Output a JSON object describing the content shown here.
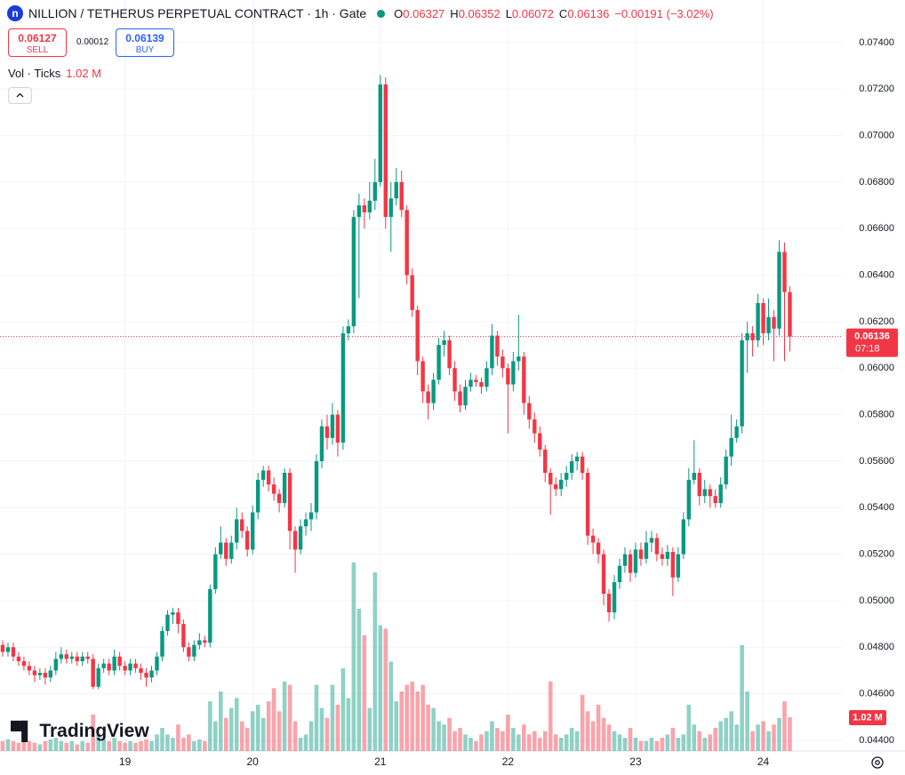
{
  "header": {
    "title": "NILLION / TETHERUS PERPETUAL CONTRACT · 1h · Gate",
    "ohlc": [
      {
        "key": "O",
        "value": "0.06327"
      },
      {
        "key": "H",
        "value": "0.06352"
      },
      {
        "key": "L",
        "value": "0.06072"
      },
      {
        "key": "C",
        "value": "0.06136"
      }
    ],
    "change": "−0.00191 (−3.02%)",
    "sell": {
      "price": "0.06127",
      "label": "SELL"
    },
    "spread": "0.00012",
    "buy": {
      "price": "0.06139",
      "label": "BUY"
    }
  },
  "chart_data": {
    "type": "candlestick",
    "up_color": "#089981",
    "down_color": "#f23645",
    "categories": [
      null,
      null,
      null,
      null,
      null,
      null,
      null,
      null,
      null,
      null,
      null,
      null,
      null,
      null,
      null,
      null,
      null,
      null,
      null,
      null,
      null,
      null,
      null,
      "19",
      null,
      null,
      null,
      null,
      null,
      null,
      null,
      null,
      null,
      null,
      null,
      null,
      null,
      null,
      null,
      null,
      null,
      null,
      null,
      null,
      null,
      null,
      null,
      "20",
      null,
      null,
      null,
      null,
      null,
      null,
      null,
      null,
      null,
      null,
      null,
      null,
      null,
      null,
      null,
      null,
      null,
      null,
      null,
      null,
      null,
      null,
      null,
      "21",
      null,
      null,
      null,
      null,
      null,
      null,
      null,
      null,
      null,
      null,
      null,
      null,
      null,
      null,
      null,
      null,
      null,
      null,
      null,
      null,
      null,
      null,
      null,
      "22",
      null,
      null,
      null,
      null,
      null,
      null,
      null,
      null,
      null,
      null,
      null,
      null,
      null,
      null,
      null,
      null,
      null,
      null,
      null,
      null,
      null,
      null,
      null,
      "23",
      null,
      null,
      null,
      null,
      null,
      null,
      null,
      null,
      null,
      null,
      null,
      null,
      null,
      null,
      null,
      null,
      null,
      null,
      null,
      null,
      null,
      null,
      null,
      "24",
      null,
      null,
      null,
      null,
      null
    ],
    "open": [
      0.0481,
      0.0478,
      0.048,
      0.0476,
      0.0474,
      0.0472,
      0.047,
      0.0468,
      0.0469,
      0.0467,
      0.047,
      0.0475,
      0.0477,
      0.0475,
      0.0476,
      0.0474,
      0.0476,
      0.0475,
      0.0463,
      0.0471,
      0.0473,
      0.047,
      0.0476,
      0.0472,
      0.047,
      0.0473,
      0.0471,
      0.0469,
      0.0467,
      0.047,
      0.0476,
      0.0487,
      0.0494,
      0.0495,
      0.049,
      0.048,
      0.0476,
      0.0481,
      0.0483,
      0.0482,
      0.0505,
      0.052,
      0.0525,
      0.0518,
      0.0525,
      0.0535,
      0.053,
      0.0522,
      0.0538,
      0.0552,
      0.0556,
      0.055,
      0.0546,
      0.0542,
      0.0555,
      0.053,
      0.0522,
      0.0532,
      0.0535,
      0.0538,
      0.056,
      0.0575,
      0.057,
      0.058,
      0.0568,
      0.0615,
      0.0618,
      0.0665,
      0.067,
      0.0667,
      0.0672,
      0.068,
      0.0722,
      0.0665,
      0.0673,
      0.068,
      0.0668,
      0.064,
      0.0625,
      0.0603,
      0.059,
      0.0585,
      0.0595,
      0.061,
      0.0612,
      0.06,
      0.059,
      0.0584,
      0.0592,
      0.0595,
      0.0594,
      0.0592,
      0.06,
      0.0614,
      0.0605,
      0.06,
      0.0593,
      0.0603,
      0.0605,
      0.0585,
      0.0578,
      0.0572,
      0.0565,
      0.0555,
      0.055,
      0.0548,
      0.0552,
      0.0555,
      0.056,
      0.0562,
      0.0555,
      0.0528,
      0.0525,
      0.052,
      0.0503,
      0.0495,
      0.0508,
      0.0515,
      0.052,
      0.0512,
      0.0522,
      0.0518,
      0.0525,
      0.0527,
      0.052,
      0.0518,
      0.0521,
      0.051,
      0.052,
      0.0535,
      0.0552,
      0.0555,
      0.0545,
      0.0548,
      0.0545,
      0.0542,
      0.055,
      0.0562,
      0.057,
      0.0575,
      0.0612,
      0.0615,
      0.0612,
      0.0628,
      0.0615,
      0.0622,
      0.0617,
      0.065,
      0.06327
    ],
    "high": [
      0.0483,
      0.0482,
      0.0482,
      0.0478,
      0.0476,
      0.0474,
      0.0472,
      0.0471,
      0.0471,
      0.0472,
      0.0478,
      0.048,
      0.0479,
      0.0478,
      0.0478,
      0.0478,
      0.0478,
      0.0477,
      0.0473,
      0.0475,
      0.0475,
      0.0479,
      0.0478,
      0.0474,
      0.0475,
      0.0475,
      0.0473,
      0.0471,
      0.0472,
      0.0478,
      0.0489,
      0.0496,
      0.0497,
      0.0497,
      0.0492,
      0.0482,
      0.0483,
      0.0486,
      0.0485,
      0.0507,
      0.0523,
      0.0532,
      0.0527,
      0.0528,
      0.054,
      0.0538,
      0.0532,
      0.0541,
      0.0555,
      0.0558,
      0.0558,
      0.0553,
      0.0548,
      0.0557,
      0.0557,
      0.0532,
      0.0535,
      0.0538,
      0.0542,
      0.0563,
      0.0578,
      0.058,
      0.0585,
      0.0582,
      0.0618,
      0.0621,
      0.0668,
      0.0675,
      0.0673,
      0.068,
      0.069,
      0.0726,
      0.0725,
      0.068,
      0.0686,
      0.0685,
      0.067,
      0.0643,
      0.0627,
      0.0605,
      0.0593,
      0.0598,
      0.0613,
      0.0616,
      0.0614,
      0.0603,
      0.0593,
      0.0595,
      0.0598,
      0.0597,
      0.0596,
      0.0603,
      0.0619,
      0.0616,
      0.0608,
      0.0602,
      0.0607,
      0.0623,
      0.0607,
      0.0588,
      0.0581,
      0.0575,
      0.0567,
      0.0557,
      0.0553,
      0.0555,
      0.0558,
      0.0563,
      0.0564,
      0.0564,
      0.0557,
      0.0531,
      0.0527,
      0.0522,
      0.0505,
      0.0511,
      0.0518,
      0.0523,
      0.0522,
      0.0525,
      0.0525,
      0.053,
      0.053,
      0.0529,
      0.0523,
      0.0524,
      0.0523,
      0.0523,
      0.0538,
      0.0557,
      0.0569,
      0.0557,
      0.0552,
      0.055,
      0.0548,
      0.0553,
      0.0565,
      0.058,
      0.0578,
      0.0615,
      0.062,
      0.0618,
      0.0632,
      0.063,
      0.063,
      0.0625,
      0.0655,
      0.0654,
      0.06352
    ],
    "low": [
      0.0476,
      0.0476,
      0.0474,
      0.0472,
      0.047,
      0.0468,
      0.0465,
      0.0466,
      0.0464,
      0.0465,
      0.0468,
      0.0473,
      0.0473,
      0.0473,
      0.0472,
      0.0472,
      0.0473,
      0.0462,
      0.0462,
      0.0469,
      0.0468,
      0.0468,
      0.047,
      0.0468,
      0.0468,
      0.0469,
      0.0466,
      0.0463,
      0.0465,
      0.0468,
      0.0474,
      0.0485,
      0.049,
      0.0486,
      0.0478,
      0.0474,
      0.0474,
      0.0479,
      0.048,
      0.048,
      0.0503,
      0.0518,
      0.0515,
      0.0516,
      0.0522,
      0.0527,
      0.0519,
      0.052,
      0.0535,
      0.0549,
      0.0547,
      0.0543,
      0.0538,
      0.054,
      0.0522,
      0.0512,
      0.052,
      0.0528,
      0.053,
      0.0535,
      0.0557,
      0.0565,
      0.0567,
      0.0562,
      0.0565,
      0.0612,
      0.0615,
      0.063,
      0.066,
      0.0664,
      0.0668,
      0.0678,
      0.066,
      0.065,
      0.067,
      0.0665,
      0.0636,
      0.0622,
      0.0597,
      0.0585,
      0.0578,
      0.0582,
      0.0593,
      0.0605,
      0.0597,
      0.0586,
      0.0581,
      0.0582,
      0.059,
      0.0592,
      0.0589,
      0.059,
      0.0597,
      0.0601,
      0.0596,
      0.0572,
      0.059,
      0.0599,
      0.058,
      0.0574,
      0.0568,
      0.0562,
      0.0551,
      0.0537,
      0.0545,
      0.0545,
      0.0549,
      0.0552,
      0.0556,
      0.0552,
      0.0524,
      0.052,
      0.0516,
      0.0498,
      0.0491,
      0.0492,
      0.0505,
      0.0512,
      0.0508,
      0.051,
      0.0515,
      0.0516,
      0.0521,
      0.0517,
      0.0515,
      0.0515,
      0.0502,
      0.0508,
      0.0518,
      0.0532,
      0.055,
      0.0541,
      0.0542,
      0.054,
      0.054,
      0.054,
      0.0548,
      0.0558,
      0.0568,
      0.0572,
      0.0598,
      0.0605,
      0.0609,
      0.061,
      0.0612,
      0.0603,
      0.0614,
      0.0603,
      0.06072
    ],
    "close": [
      0.0478,
      0.048,
      0.0476,
      0.0474,
      0.0472,
      0.047,
      0.0468,
      0.0469,
      0.0467,
      0.047,
      0.0475,
      0.0477,
      0.0475,
      0.0476,
      0.0474,
      0.0476,
      0.0475,
      0.0463,
      0.0471,
      0.0473,
      0.047,
      0.0476,
      0.0472,
      0.047,
      0.0473,
      0.0471,
      0.0469,
      0.0467,
      0.047,
      0.0476,
      0.0487,
      0.0494,
      0.0495,
      0.049,
      0.048,
      0.0476,
      0.0481,
      0.0483,
      0.0482,
      0.0505,
      0.052,
      0.0525,
      0.0518,
      0.0525,
      0.0535,
      0.053,
      0.0522,
      0.0538,
      0.0552,
      0.0556,
      0.055,
      0.0546,
      0.0542,
      0.0555,
      0.053,
      0.0522,
      0.0532,
      0.0535,
      0.0538,
      0.056,
      0.0575,
      0.057,
      0.058,
      0.0568,
      0.0615,
      0.0618,
      0.0665,
      0.067,
      0.0667,
      0.0672,
      0.068,
      0.0722,
      0.0665,
      0.0673,
      0.068,
      0.0668,
      0.064,
      0.0625,
      0.0603,
      0.059,
      0.0585,
      0.0595,
      0.061,
      0.0612,
      0.06,
      0.059,
      0.0584,
      0.0592,
      0.0595,
      0.0594,
      0.0592,
      0.06,
      0.0614,
      0.0605,
      0.06,
      0.0593,
      0.0603,
      0.0605,
      0.0585,
      0.0578,
      0.0572,
      0.0565,
      0.0555,
      0.055,
      0.0548,
      0.0552,
      0.0555,
      0.056,
      0.0562,
      0.0555,
      0.0528,
      0.0525,
      0.052,
      0.0503,
      0.0495,
      0.0508,
      0.0515,
      0.052,
      0.0512,
      0.0522,
      0.0518,
      0.0525,
      0.0527,
      0.052,
      0.0518,
      0.0521,
      0.051,
      0.052,
      0.0535,
      0.0552,
      0.0555,
      0.0545,
      0.0548,
      0.0545,
      0.0542,
      0.055,
      0.0562,
      0.057,
      0.0575,
      0.0612,
      0.0615,
      0.0612,
      0.0628,
      0.0615,
      0.0622,
      0.0617,
      0.065,
      0.06327,
      0.06136
    ],
    "last_price_label": "0.06136",
    "countdown": "07:18",
    "volume": {
      "name": "Vol · Ticks",
      "last_label": "1.02 M",
      "lim": [
        0,
        22.7
      ],
      "values": [
        0.3,
        0.35,
        0.3,
        0.25,
        0.3,
        0.3,
        0.25,
        0.2,
        0.3,
        0.35,
        0.4,
        0.3,
        0.25,
        0.3,
        0.2,
        0.3,
        0.25,
        1.1,
        0.5,
        0.35,
        0.3,
        0.4,
        0.3,
        0.25,
        0.3,
        0.25,
        0.3,
        0.35,
        0.3,
        0.5,
        0.7,
        0.5,
        0.4,
        0.8,
        0.4,
        0.5,
        0.3,
        0.35,
        0.3,
        1.5,
        0.9,
        1.8,
        1.0,
        1.3,
        1.6,
        0.9,
        0.7,
        1.2,
        1.4,
        1.0,
        1.5,
        1.9,
        1.2,
        2.1,
        2.0,
        0.9,
        0.4,
        0.5,
        0.9,
        2.0,
        1.3,
        1.0,
        2.0,
        1.4,
        2.5,
        1.6,
        5.7,
        4.3,
        3.5,
        1.3,
        5.4,
        3.8,
        3.7,
        2.7,
        1.5,
        1.8,
        2.0,
        2.1,
        1.8,
        2.0,
        1.4,
        1.3,
        0.9,
        0.8,
        1.0,
        0.6,
        0.7,
        0.5,
        0.4,
        0.3,
        0.5,
        0.6,
        0.9,
        0.7,
        0.6,
        1.1,
        0.7,
        0.5,
        0.8,
        0.5,
        0.6,
        0.4,
        0.6,
        2.1,
        0.5,
        0.4,
        0.5,
        0.7,
        0.6,
        1.7,
        1.2,
        0.9,
        1.4,
        1.0,
        0.8,
        0.6,
        0.5,
        0.4,
        0.7,
        0.4,
        0.3,
        0.3,
        0.4,
        0.3,
        0.4,
        0.5,
        0.7,
        0.4,
        0.5,
        1.4,
        0.8,
        0.6,
        0.4,
        0.5,
        0.7,
        0.9,
        1.0,
        1.2,
        0.8,
        3.2,
        1.8,
        0.6,
        0.8,
        0.9,
        0.6,
        0.8,
        1.0,
        1.5,
        1.02
      ]
    },
    "ylim": [
      0.04354,
      0.07583
    ],
    "yticks": [
      {
        "value": 0.044,
        "label": "0.04400"
      },
      {
        "value": 0.046,
        "label": "0.04600"
      },
      {
        "value": 0.048,
        "label": "0.04800"
      },
      {
        "value": 0.05,
        "label": "0.05000"
      },
      {
        "value": 0.052,
        "label": "0.05200"
      },
      {
        "value": 0.054,
        "label": "0.05400"
      },
      {
        "value": 0.056,
        "label": "0.05600"
      },
      {
        "value": 0.058,
        "label": "0.05800"
      },
      {
        "value": 0.06,
        "label": "0.06000"
      },
      {
        "value": 0.062,
        "label": "0.06200"
      },
      {
        "value": 0.064,
        "label": "0.06400"
      },
      {
        "value": 0.066,
        "label": "0.06600"
      },
      {
        "value": 0.068,
        "label": "0.06800"
      },
      {
        "value": 0.07,
        "label": "0.07000"
      },
      {
        "value": 0.072,
        "label": "0.07200"
      },
      {
        "value": 0.074,
        "label": "0.07400"
      }
    ],
    "grid": true
  },
  "watermark": "TradingView"
}
